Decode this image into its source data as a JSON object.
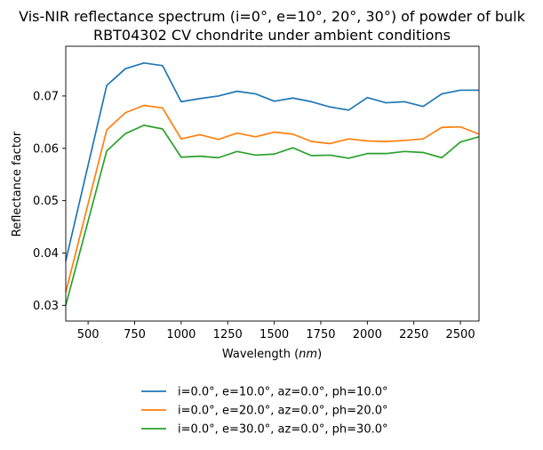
{
  "chart_data": {
    "type": "line",
    "title": "Vis-NIR reflectance spectrum (i=0°, e=10°, 20°, 30°) of powder of bulk",
    "subtitle": "RBT04302 CV chondrite under ambient conditions",
    "xlabel_prefix": "Wavelength (",
    "xlabel_unit": "nm",
    "xlabel_suffix": ")",
    "ylabel": "Reflectance factor",
    "xlim": [
      380,
      2600
    ],
    "ylim": [
      0.027,
      0.0795
    ],
    "xticks": [
      500,
      750,
      1000,
      1250,
      1500,
      1750,
      2000,
      2250,
      2500
    ],
    "xtick_labels": [
      "500",
      "750",
      "1000",
      "1250",
      "1500",
      "1750",
      "2000",
      "2250",
      "2500"
    ],
    "yticks": [
      0.03,
      0.04,
      0.05,
      0.06,
      0.07
    ],
    "ytick_labels": [
      "0.03",
      "0.04",
      "0.05",
      "0.06",
      "0.07"
    ],
    "grid": false,
    "legend_position": "below",
    "x": [
      380,
      600,
      700,
      800,
      900,
      1000,
      1100,
      1200,
      1300,
      1400,
      1500,
      1600,
      1700,
      1800,
      1900,
      2000,
      2100,
      2200,
      2300,
      2400,
      2500,
      2600
    ],
    "series": [
      {
        "name": "i=0.0°, e=10.0°, az=0.0°, ph=10.0°",
        "color": "#1f77b4",
        "values": [
          0.0385,
          0.072,
          0.0752,
          0.0763,
          0.0758,
          0.0689,
          0.0695,
          0.07,
          0.0709,
          0.0704,
          0.069,
          0.0696,
          0.0689,
          0.0679,
          0.0673,
          0.0697,
          0.0687,
          0.0689,
          0.068,
          0.0704,
          0.0711,
          0.0711
        ]
      },
      {
        "name": "i=0.0°, e=20.0°, az=0.0°, ph=20.0°",
        "color": "#ff7f0e",
        "values": [
          0.0325,
          0.0635,
          0.0668,
          0.0682,
          0.0677,
          0.0618,
          0.0626,
          0.0617,
          0.0629,
          0.0622,
          0.0631,
          0.0627,
          0.0613,
          0.0609,
          0.0618,
          0.0614,
          0.0613,
          0.0615,
          0.0618,
          0.064,
          0.0641,
          0.0627
        ]
      },
      {
        "name": "i=0.0°, e=30.0°, az=0.0°, ph=30.0°",
        "color": "#2ca02c",
        "values": [
          0.03,
          0.0595,
          0.0628,
          0.0644,
          0.0637,
          0.0583,
          0.0585,
          0.0582,
          0.0594,
          0.0587,
          0.0589,
          0.0601,
          0.0586,
          0.0587,
          0.0581,
          0.059,
          0.059,
          0.0594,
          0.0592,
          0.0582,
          0.0612,
          0.0622
        ]
      }
    ]
  }
}
